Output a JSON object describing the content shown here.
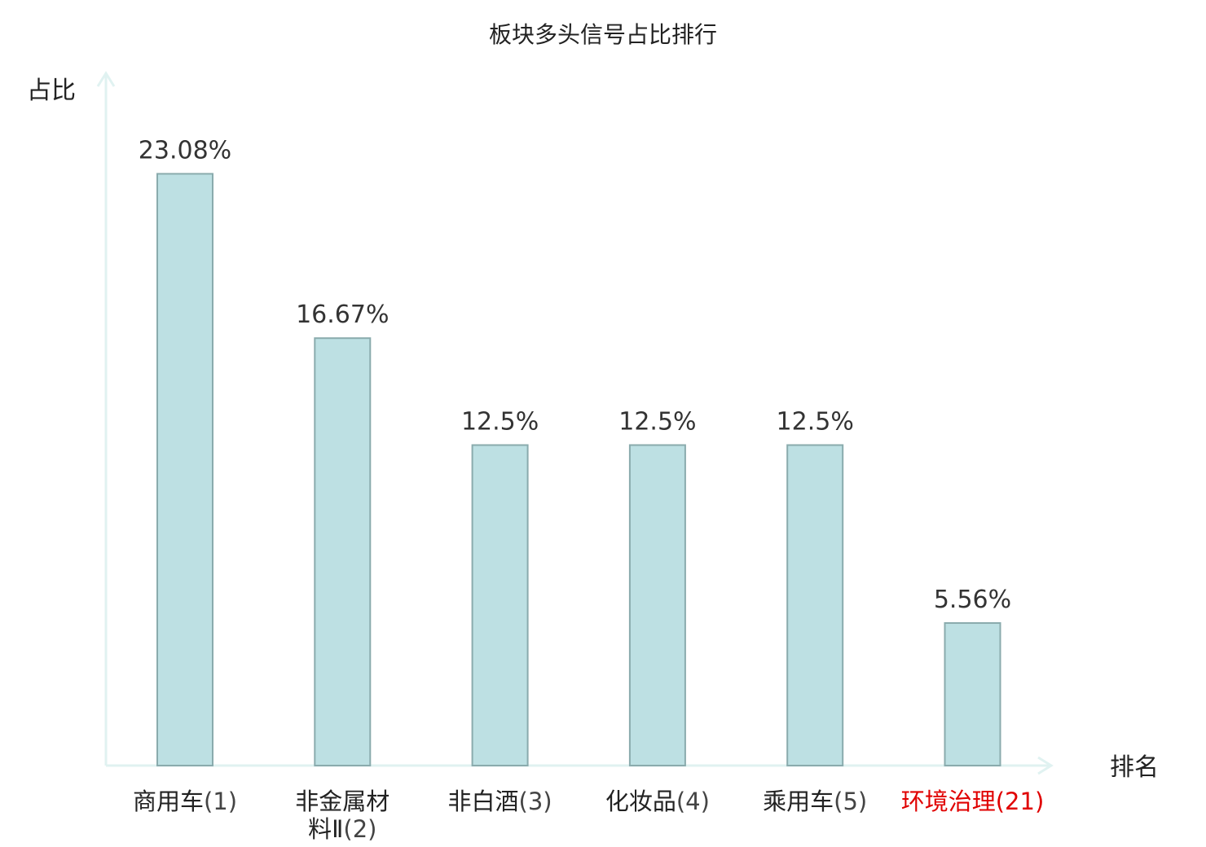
{
  "chart_data": {
    "type": "bar",
    "title": "板块多头信号占比排行",
    "ylabel": "占比",
    "xlabel": "排名",
    "ylim": [
      0,
      27
    ],
    "grid": false,
    "legend": "none",
    "categories": [
      {
        "name_lines": [
          "商用车"
        ],
        "rank": "(1)",
        "highlight": false
      },
      {
        "name_lines": [
          "非金属材",
          "料Ⅱ"
        ],
        "rank": "(2)",
        "highlight": false
      },
      {
        "name_lines": [
          "非白酒"
        ],
        "rank": "(3)",
        "highlight": false
      },
      {
        "name_lines": [
          "化妆品"
        ],
        "rank": "(4)",
        "highlight": false
      },
      {
        "name_lines": [
          "乘用车"
        ],
        "rank": "(5)",
        "highlight": false
      },
      {
        "name_lines": [
          "环境治理"
        ],
        "rank": "(21)",
        "highlight": true
      }
    ],
    "values": [
      23.08,
      16.67,
      12.5,
      12.5,
      12.5,
      5.56
    ],
    "value_labels": [
      "23.08%",
      "16.67%",
      "12.5%",
      "12.5%",
      "12.5%",
      "5.56%"
    ],
    "colors": {
      "bar_fill": "#bde0e3",
      "bar_stroke": "#8aabad",
      "axis": "#e0f2f1",
      "highlight_label": "#e00000"
    }
  }
}
